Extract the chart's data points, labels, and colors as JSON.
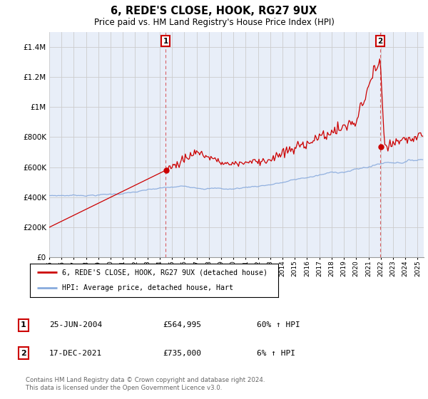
{
  "title": "6, REDE'S CLOSE, HOOK, RG27 9UX",
  "subtitle": "Price paid vs. HM Land Registry's House Price Index (HPI)",
  "ylabel_ticks": [
    "£0",
    "£200K",
    "£400K",
    "£600K",
    "£800K",
    "£1M",
    "£1.2M",
    "£1.4M"
  ],
  "ytick_values": [
    0,
    200000,
    400000,
    600000,
    800000,
    1000000,
    1200000,
    1400000
  ],
  "ylim": [
    0,
    1500000
  ],
  "xlim_start": 1995.0,
  "xlim_end": 2025.5,
  "xtick_years": [
    1995,
    1996,
    1997,
    1998,
    1999,
    2000,
    2001,
    2002,
    2003,
    2004,
    2005,
    2006,
    2007,
    2008,
    2009,
    2010,
    2011,
    2012,
    2013,
    2014,
    2015,
    2016,
    2017,
    2018,
    2019,
    2020,
    2021,
    2022,
    2023,
    2024,
    2025
  ],
  "red_line_color": "#cc0000",
  "blue_line_color": "#88aadd",
  "chart_bg_color": "#e8eef8",
  "marker1_date": 2004.48,
  "marker1_price": 564995,
  "marker2_date": 2021.96,
  "marker2_price": 735000,
  "legend_line1": "6, REDE'S CLOSE, HOOK, RG27 9UX (detached house)",
  "legend_line2": "HPI: Average price, detached house, Hart",
  "annotation1_num": "1",
  "annotation1_date": "25-JUN-2004",
  "annotation1_price": "£564,995",
  "annotation1_hpi": "60% ↑ HPI",
  "annotation2_num": "2",
  "annotation2_date": "17-DEC-2021",
  "annotation2_price": "£735,000",
  "annotation2_hpi": "6% ↑ HPI",
  "footer": "Contains HM Land Registry data © Crown copyright and database right 2024.\nThis data is licensed under the Open Government Licence v3.0.",
  "bg_color": "#ffffff",
  "grid_color": "#cccccc"
}
